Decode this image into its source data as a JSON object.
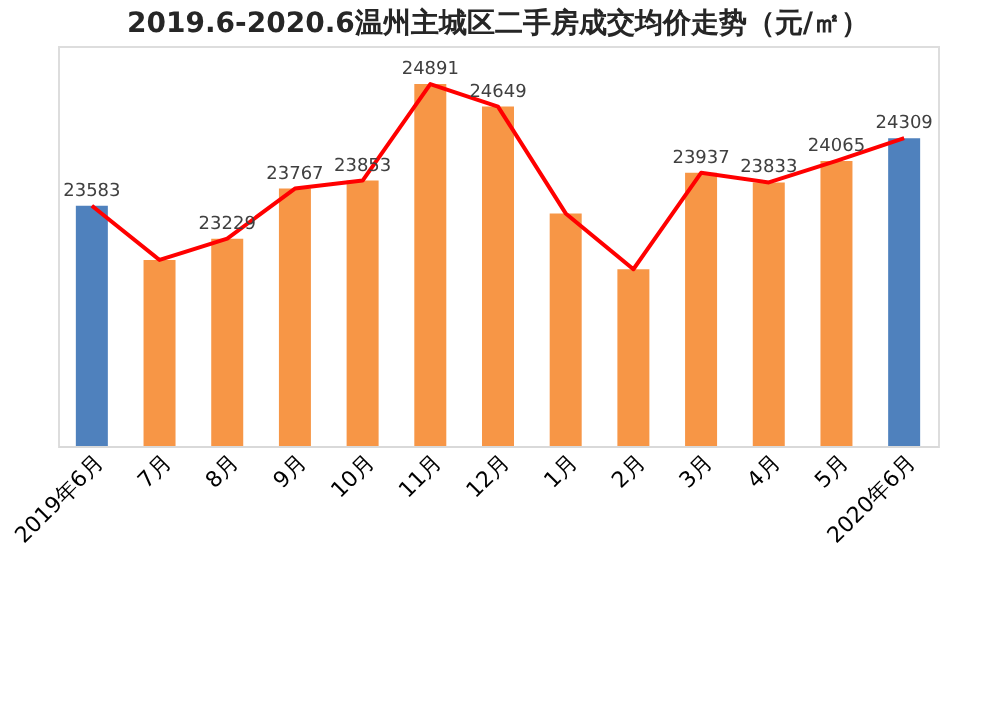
{
  "chart_data": {
    "type": "bar",
    "title": "2019.6-2020.6温州主城区二手房成交均价走势（元/㎡）",
    "categories": [
      "2019年6月",
      "7月",
      "8月",
      "9月",
      "10月",
      "11月",
      "12月",
      "1月",
      "2月",
      "3月",
      "4月",
      "5月",
      "2020年6月"
    ],
    "ylim": [
      21000,
      25300
    ],
    "series": [
      {
        "colors": [
          "#4f81bd",
          "#f79646",
          "#f79646",
          "#f79646",
          "#f79646",
          "#f79646",
          "#f79646",
          "#f79646",
          "#f79646",
          "#f79646",
          "#f79646",
          "#f79646",
          "#4f81bd"
        ],
        "values": [
          23583,
          23000,
          23229,
          23767,
          23853,
          24891,
          24649,
          23500,
          22900,
          23937,
          23833,
          24065,
          24309
        ],
        "value_labels": [
          "23583",
          null,
          "23229",
          "23767",
          "23853",
          "24891",
          "24649",
          null,
          null,
          "23937",
          "23833",
          "24065",
          "24309"
        ]
      },
      {
        "type": "line",
        "color": "#ff0000",
        "values": [
          23583,
          23000,
          23229,
          23767,
          23853,
          24891,
          24649,
          23500,
          22900,
          23937,
          23833,
          24065,
          24309
        ]
      }
    ],
    "grid": false
  }
}
